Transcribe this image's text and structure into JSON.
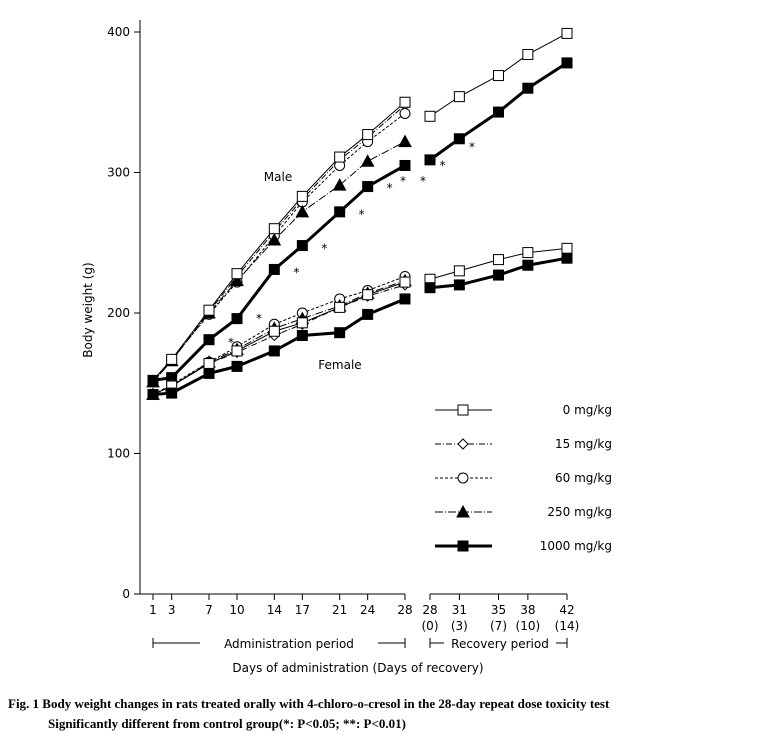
{
  "chart_data": {
    "type": "line",
    "ylabel": "Body weight (g)",
    "xlabel": "Days of administration (Days of recovery)",
    "ylim": [
      0,
      400
    ],
    "yticks": [
      "0",
      "100",
      "200",
      "300",
      "400"
    ],
    "admin_days": [
      1,
      3,
      7,
      10,
      14,
      17,
      21,
      24,
      28
    ],
    "recovery_days": [
      28,
      31,
      35,
      38,
      42
    ],
    "recovery_sublabels": [
      "(0)",
      "(3)",
      "(7)",
      "(10)",
      "(14)"
    ],
    "admin_period_label": "Administration period",
    "recovery_period_label": "Recovery period",
    "group_labels": {
      "male": "Male",
      "female": "Female"
    },
    "legend": {
      "position": "right",
      "entries": [
        "0 mg/kg",
        "15 mg/kg",
        "60 mg/kg",
        "250 mg/kg",
        "1000 mg/kg"
      ]
    },
    "series": [
      {
        "name": "0 mg/kg",
        "sex": "male",
        "values": [
          152,
          167,
          202,
          228,
          260,
          283,
          311,
          327,
          350
        ],
        "recovery": [
          340,
          354,
          369,
          384,
          399
        ]
      },
      {
        "name": "15 mg/kg",
        "sex": "male",
        "values": [
          151,
          166,
          201,
          226,
          258,
          281,
          309,
          325,
          348
        ]
      },
      {
        "name": "60 mg/kg",
        "sex": "male",
        "values": [
          152,
          167,
          199,
          222,
          255,
          279,
          305,
          322,
          342
        ]
      },
      {
        "name": "250 mg/kg",
        "sex": "male",
        "values": [
          151,
          166,
          200,
          223,
          252,
          272,
          291,
          308,
          322
        ]
      },
      {
        "name": "1000 mg/kg",
        "sex": "male",
        "values": [
          152,
          154,
          181,
          196,
          231,
          248,
          272,
          290,
          305
        ],
        "recovery": [
          309,
          324,
          343,
          360,
          378
        ]
      },
      {
        "name": "0 mg/kg",
        "sex": "female",
        "values": [
          142,
          148,
          164,
          173,
          187,
          193,
          204,
          213,
          222
        ],
        "recovery": [
          224,
          230,
          238,
          243,
          246
        ]
      },
      {
        "name": "15 mg/kg",
        "sex": "female",
        "values": [
          142,
          148,
          164,
          172,
          184,
          192,
          204,
          212,
          220
        ]
      },
      {
        "name": "60 mg/kg",
        "sex": "female",
        "values": [
          142,
          149,
          165,
          176,
          192,
          200,
          210,
          216,
          226
        ]
      },
      {
        "name": "250 mg/kg",
        "sex": "female",
        "values": [
          142,
          148,
          165,
          174,
          189,
          196,
          205,
          214,
          223
        ]
      },
      {
        "name": "1000 mg/kg",
        "sex": "female",
        "values": [
          142,
          143,
          157,
          162,
          173,
          184,
          186,
          199,
          210
        ],
        "recovery": [
          218,
          220,
          227,
          234,
          239
        ]
      }
    ],
    "annotations": [
      {
        "text": "* *",
        "day": 8.5,
        "value": 179
      },
      {
        "text": "* *",
        "day": 11.5,
        "value": 196
      },
      {
        "text": "* *",
        "day": 15.5,
        "value": 229
      },
      {
        "text": "* *",
        "day": 18.5,
        "value": 246
      },
      {
        "text": "* *",
        "day": 22.5,
        "value": 270
      },
      {
        "text": "* *",
        "day": 25.5,
        "value": 289
      },
      {
        "text": "* *",
        "day": 29,
        "value": 294,
        "zone": "gap"
      },
      {
        "text": "*",
        "rday": 29.5,
        "value": 305
      },
      {
        "text": "*",
        "rday": 32.5,
        "value": 318
      }
    ]
  },
  "caption": {
    "line1": "Fig. 1   Body weight changes in rats treated orally with 4-chloro-o-cresol in the 28-day repeat dose toxicity test",
    "line2": "Significantly different from control group(*: P<0.05; **: P<0.01)"
  }
}
